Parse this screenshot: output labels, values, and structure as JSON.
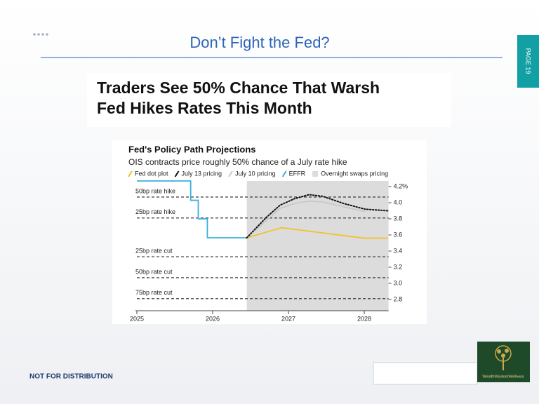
{
  "slide": {
    "title": "Don’t Fight the Fed?",
    "page_tab": "PAGE 19",
    "footer": "NOT FOR DISTRIBUTION",
    "logo_text": "WealthWisdomWellness",
    "headline": [
      "Traders See 50% Chance That Warsh",
      "Fed Hikes Rates This Month"
    ]
  },
  "chart_data": {
    "type": "line",
    "title": "Fed's Policy Path Projections",
    "subtitle": "OIS contracts price roughly 50% chance of a July rate hike",
    "xlim": [
      2025,
      2028.32
    ],
    "xticks": [
      2025,
      2026,
      2027,
      2028
    ],
    "ylim": [
      2.66,
      4.27
    ],
    "yticks": [
      {
        "value": 4.2,
        "label": "4.2%"
      },
      {
        "value": 4.0,
        "label": "4.0"
      },
      3.8,
      3.6,
      3.4,
      3.2,
      {
        "value": 3.0,
        "label": "3.0"
      },
      2.8
    ],
    "series": [
      {
        "name": "Fed dot plot",
        "color": "#f2c12e",
        "style": "solid",
        "x": [
          2026.45,
          2026.91,
          2028.0,
          2028.31
        ],
        "values": [
          3.565,
          3.69,
          3.56,
          3.56
        ]
      },
      {
        "name": "July 13 pricing",
        "color": "#111111",
        "style": "dotted",
        "x": [
          2026.45,
          2026.71,
          2026.89,
          2027.08,
          2027.27,
          2027.45,
          2027.73,
          2028.01,
          2028.31
        ],
        "values": [
          3.565,
          3.82,
          3.97,
          4.05,
          4.1,
          4.08,
          3.99,
          3.92,
          3.9
        ]
      },
      {
        "name": "July 10 pricing",
        "color": "#c8c8c8",
        "style": "solid",
        "x": [
          2026.45,
          2026.71,
          2026.89,
          2027.08,
          2027.27,
          2027.45,
          2027.73,
          2028.01
        ],
        "values": [
          3.565,
          3.78,
          3.93,
          3.99,
          4.02,
          4.01,
          3.95,
          3.89
        ]
      },
      {
        "name": "EFFR",
        "color": "#3aaee0",
        "style": "solid",
        "x": [
          2025,
          2025.71,
          2025.71,
          2025.81,
          2025.81,
          2025.93,
          2025.93,
          2026.45
        ],
        "values": [
          4.27,
          4.27,
          4.03,
          4.03,
          3.8,
          3.8,
          3.565,
          3.565
        ]
      }
    ],
    "shade": {
      "name": "Overnight swaps pricing",
      "color": "#dcdcdc",
      "x": [
        2026.45,
        2028.32
      ]
    },
    "levels": [
      {
        "label": "50bp rate hike",
        "value": 4.07
      },
      {
        "label": "25bp rate hike",
        "value": 3.81
      },
      {
        "label": "25bp rate cut",
        "value": 3.33
      },
      {
        "label": "50bp rate cut",
        "value": 3.07
      },
      {
        "label": "75bp rate cut",
        "value": 2.81
      }
    ]
  }
}
